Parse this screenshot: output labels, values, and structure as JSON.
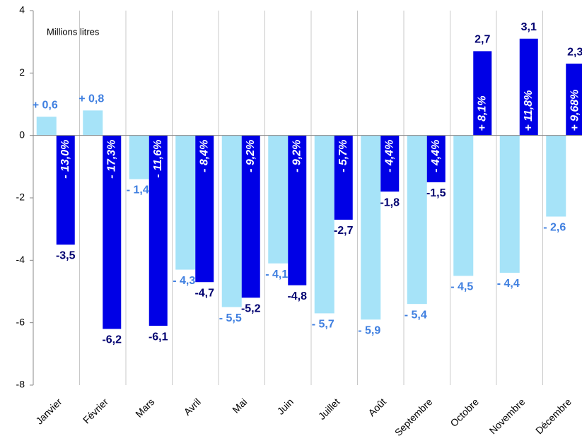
{
  "chart_data": {
    "type": "bar",
    "annotation": "Millions litres",
    "categories": [
      "Janvier",
      "Février",
      "Mars",
      "Avril",
      "Mai",
      "Juin",
      "Juillet",
      "Août",
      "Septembre",
      "Octobre",
      "Novembre",
      "Décembre"
    ],
    "series": [
      {
        "color": "#a6e3f8",
        "label_color": "#3f7fe0",
        "values": [
          0.6,
          0.8,
          -1.4,
          -4.3,
          -5.5,
          -4.1,
          -5.7,
          -5.9,
          -5.4,
          -4.5,
          -4.4,
          -2.6
        ],
        "value_labels": [
          "+ 0,6",
          "+ 0,8",
          "- 1,4",
          "- 4,3",
          "- 5,5",
          "- 4,1",
          "- 5,7",
          "- 5,9",
          "- 5,4",
          "- 4,5",
          "- 4,4",
          "- 2,6"
        ]
      },
      {
        "color": "#0000e6",
        "label_color": "#000070",
        "values": [
          -3.5,
          -6.2,
          -6.1,
          -4.7,
          -5.2,
          -4.8,
          -2.7,
          -1.8,
          -1.5,
          2.7,
          3.1,
          2.3
        ],
        "value_labels": [
          "-3,5",
          "-6,2",
          "-6,1",
          "-4,7",
          "-5,2",
          "-4,8",
          "-2,7",
          "-1,8",
          "-1,5",
          "2,7",
          "3,1",
          "2,3"
        ],
        "pct_labels": [
          "- 13,0%",
          "- 17,3%",
          "- 11,6%",
          "- 8,4%",
          "- 9,2%",
          "- 9,2%",
          "- 5,7%",
          "- 4,4%",
          "- 4,4%",
          "+ 8,1%",
          "+ 11,8%",
          "+ 9,68%"
        ]
      }
    ],
    "ylim": [
      -8,
      4
    ],
    "yticks": [
      -8,
      -6,
      -4,
      -2,
      0,
      2,
      4
    ],
    "grid": false
  }
}
